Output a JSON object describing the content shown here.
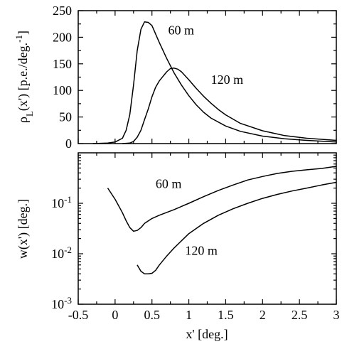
{
  "chart_data": [
    {
      "type": "line",
      "title": "",
      "xlabel": "",
      "ylabel_main": "ρ",
      "ylabel_sub": "L",
      "ylabel_rest": "(x') [p.e./deg.",
      "ylabel_sup": "-1",
      "ylabel_close": "]",
      "xlim": [
        -0.5,
        3
      ],
      "ylim": [
        0,
        250
      ],
      "yscale": "linear",
      "yticks": [
        0,
        50,
        100,
        150,
        200,
        250
      ],
      "ytick_labels": [
        "0",
        "50",
        "100",
        "150",
        "200",
        "250"
      ],
      "xticks": [
        -0.5,
        0,
        0.5,
        1,
        1.5,
        2,
        2.5,
        3
      ],
      "series": [
        {
          "name": "60 m",
          "x": [
            -0.3,
            -0.1,
            0.0,
            0.1,
            0.15,
            0.2,
            0.25,
            0.3,
            0.35,
            0.4,
            0.45,
            0.5,
            0.6,
            0.7,
            0.8,
            0.9,
            1.0,
            1.1,
            1.2,
            1.3,
            1.5,
            1.7,
            2.0,
            2.3,
            2.6,
            3.0
          ],
          "y": [
            0,
            1,
            3,
            10,
            25,
            55,
            110,
            175,
            215,
            229,
            228,
            222,
            190,
            160,
            133,
            110,
            90,
            73,
            59,
            48,
            33,
            23,
            14,
            9,
            6,
            3
          ]
        },
        {
          "name": "120 m",
          "x": [
            0.1,
            0.2,
            0.25,
            0.3,
            0.35,
            0.4,
            0.45,
            0.5,
            0.55,
            0.6,
            0.7,
            0.75,
            0.8,
            0.85,
            0.9,
            1.0,
            1.1,
            1.2,
            1.3,
            1.4,
            1.5,
            1.7,
            2.0,
            2.3,
            2.6,
            3.0
          ],
          "y": [
            0,
            1,
            4,
            12,
            25,
            45,
            65,
            88,
            106,
            118,
            135,
            141,
            142,
            140,
            135,
            120,
            104,
            89,
            76,
            64,
            54,
            38,
            24,
            15,
            10,
            6
          ]
        }
      ],
      "annotations": [
        {
          "text": "60 m",
          "x": 0.72,
          "y": 205
        },
        {
          "text": "120 m",
          "x": 1.3,
          "y": 112
        }
      ]
    },
    {
      "type": "line",
      "title": "",
      "xlabel": "x' [deg.]",
      "ylabel": "w(x') [deg.]",
      "xlim": [
        -0.5,
        3
      ],
      "ylim": [
        0.001,
        1
      ],
      "yscale": "log",
      "yticks": [
        0.001,
        0.01,
        0.1
      ],
      "ytick_labels": [
        {
          "base": "10",
          "exp": "-3"
        },
        {
          "base": "10",
          "exp": "-2"
        },
        {
          "base": "10",
          "exp": "-1"
        }
      ],
      "xticks": [
        -0.5,
        0,
        0.5,
        1,
        1.5,
        2,
        2.5,
        3
      ],
      "xtick_labels": [
        "-0.5",
        "0",
        "0.5",
        "1",
        "1.5",
        "2",
        "2.5",
        "3"
      ],
      "series": [
        {
          "name": "60 m",
          "x": [
            -0.1,
            0.0,
            0.1,
            0.15,
            0.2,
            0.25,
            0.3,
            0.35,
            0.4,
            0.5,
            0.6,
            0.8,
            1.0,
            1.2,
            1.4,
            1.6,
            1.8,
            2.0,
            2.2,
            2.4,
            2.6,
            2.8,
            3.0
          ],
          "y": [
            0.2,
            0.12,
            0.065,
            0.045,
            0.033,
            0.028,
            0.029,
            0.033,
            0.04,
            0.05,
            0.058,
            0.075,
            0.1,
            0.135,
            0.18,
            0.23,
            0.29,
            0.34,
            0.39,
            0.43,
            0.46,
            0.49,
            0.54
          ]
        },
        {
          "name": "120 m",
          "x": [
            0.3,
            0.35,
            0.4,
            0.45,
            0.5,
            0.55,
            0.6,
            0.7,
            0.8,
            1.0,
            1.2,
            1.4,
            1.6,
            1.8,
            2.0,
            2.2,
            2.4,
            2.6,
            2.8,
            3.0
          ],
          "y": [
            0.006,
            0.0045,
            0.004,
            0.004,
            0.0041,
            0.0047,
            0.006,
            0.009,
            0.013,
            0.025,
            0.04,
            0.058,
            0.078,
            0.1,
            0.125,
            0.15,
            0.175,
            0.2,
            0.23,
            0.26
          ]
        }
      ],
      "annotations": [
        {
          "text": "60 m",
          "x": 0.55,
          "y": 0.2
        },
        {
          "text": "120 m",
          "x": 0.95,
          "y": 0.0095
        }
      ]
    }
  ]
}
